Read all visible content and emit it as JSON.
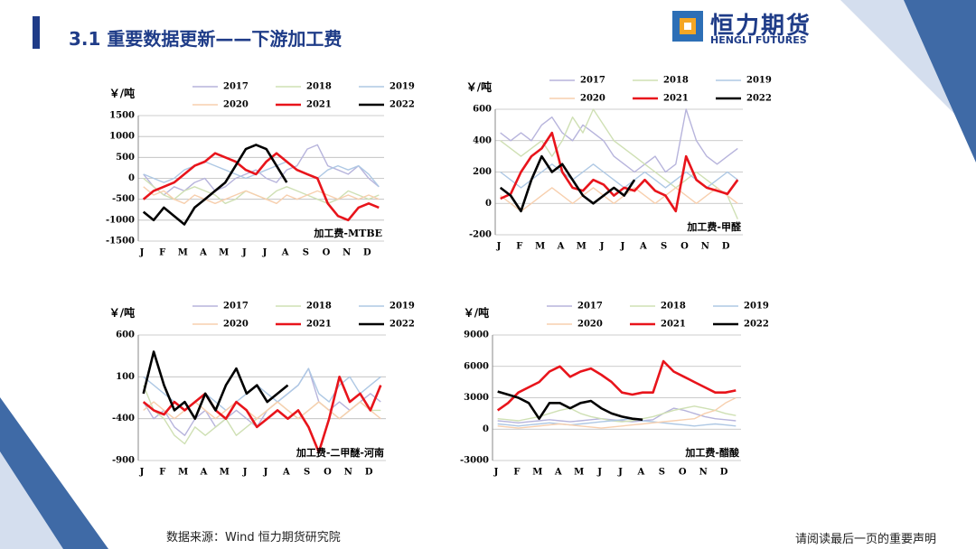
{
  "header": {
    "title": "3.1 重要数据更新——下游加工费",
    "logo": "恒力期货",
    "logo_en": "HENGLI FUTURES"
  },
  "footer": {
    "source": "数据来源：Wind 恒力期货研究院",
    "notice": "请阅读最后一页的重要声明"
  },
  "chart_data": [
    {
      "type": "line",
      "title": "加工费-MTBE",
      "y_label": "￥/吨",
      "categories": [
        "J",
        null,
        "F",
        null,
        "M",
        null,
        "A",
        null,
        "M",
        null,
        "J",
        null,
        "J",
        null,
        "A",
        null,
        "S",
        null,
        "O",
        null,
        "N",
        null,
        "D",
        null
      ],
      "ylim": [
        -1500,
        1500
      ],
      "yticks": [
        -1500,
        -1000,
        -500,
        0,
        500,
        1000,
        1500
      ],
      "grid": true,
      "series": [
        {
          "name": "2017",
          "color": "#b7b4dc",
          "values": [
            100,
            -200,
            -400,
            -200,
            -300,
            -100,
            0,
            -300,
            -200,
            0,
            100,
            200,
            0,
            -100,
            200,
            300,
            700,
            800,
            300,
            200,
            100,
            300,
            0,
            -200
          ]
        },
        {
          "name": "2018",
          "color": "#cfe0b4",
          "values": [
            0,
            -200,
            -400,
            -500,
            -300,
            -200,
            -300,
            -400,
            -600,
            -500,
            -300,
            -400,
            -500,
            -300,
            -200,
            -300,
            -400,
            -500,
            -600,
            -500,
            -300,
            -400,
            -500,
            -400
          ]
        },
        {
          "name": "2019",
          "color": "#aec8e4",
          "values": [
            100,
            0,
            -100,
            0,
            200,
            300,
            400,
            300,
            200,
            100,
            0,
            100,
            200,
            300,
            400,
            200,
            100,
            0,
            200,
            300,
            200,
            300,
            100,
            -200
          ]
        },
        {
          "name": "2020",
          "color": "#f7cfae",
          "values": [
            -200,
            -400,
            -300,
            -500,
            -600,
            -400,
            -500,
            -600,
            -500,
            -400,
            -300,
            -400,
            -500,
            -600,
            -400,
            -500,
            -400,
            -300,
            -400,
            -500,
            -400,
            -500,
            -400,
            -500
          ]
        },
        {
          "name": "2021",
          "color": "#e8141b",
          "values": [
            -500,
            -300,
            -200,
            -100,
            100,
            300,
            400,
            600,
            500,
            400,
            200,
            100,
            400,
            600,
            400,
            200,
            100,
            0,
            -600,
            -900,
            -1000,
            -700,
            -600,
            -700
          ]
        },
        {
          "name": "2022",
          "color": "#000000",
          "values": [
            -800,
            -1000,
            -700,
            -900,
            -1100,
            -700,
            -500,
            -300,
            -100,
            300,
            700,
            800,
            700,
            300,
            -100,
            null,
            null,
            null,
            null,
            null,
            null,
            null,
            null,
            null
          ]
        }
      ]
    },
    {
      "type": "line",
      "title": "加工费-甲醛",
      "y_label": "￥/吨",
      "categories": [
        "J",
        null,
        "F",
        null,
        "M",
        null,
        "A",
        null,
        "M",
        null,
        "J",
        null,
        "J",
        null,
        "A",
        null,
        "S",
        null,
        "O",
        null,
        "N",
        null,
        "D",
        null
      ],
      "ylim": [
        -200,
        600
      ],
      "yticks": [
        -200,
        0,
        200,
        400,
        600
      ],
      "grid": true,
      "series": [
        {
          "name": "2017",
          "color": "#b7b4dc",
          "values": [
            450,
            400,
            450,
            400,
            500,
            550,
            450,
            400,
            500,
            450,
            400,
            300,
            250,
            200,
            250,
            300,
            200,
            250,
            600,
            400,
            300,
            250,
            300,
            350
          ]
        },
        {
          "name": "2018",
          "color": "#cfe0b4",
          "values": [
            400,
            350,
            300,
            350,
            400,
            300,
            400,
            550,
            450,
            600,
            500,
            400,
            350,
            300,
            250,
            200,
            150,
            100,
            150,
            200,
            150,
            100,
            50,
            -100
          ]
        },
        {
          "name": "2019",
          "color": "#aec8e4",
          "values": [
            200,
            150,
            100,
            150,
            200,
            250,
            200,
            150,
            200,
            250,
            200,
            150,
            100,
            150,
            200,
            150,
            100,
            150,
            200,
            150,
            100,
            150,
            200,
            150
          ]
        },
        {
          "name": "2020",
          "color": "#f7cfae",
          "values": [
            50,
            0,
            -50,
            0,
            50,
            100,
            50,
            0,
            50,
            100,
            50,
            0,
            50,
            100,
            50,
            0,
            50,
            100,
            50,
            0,
            50,
            100,
            50,
            0
          ]
        },
        {
          "name": "2021",
          "color": "#e8141b",
          "values": [
            30,
            60,
            200,
            300,
            350,
            450,
            200,
            100,
            80,
            150,
            120,
            50,
            100,
            80,
            150,
            80,
            50,
            -50,
            300,
            150,
            100,
            80,
            60,
            150
          ]
        },
        {
          "name": "2022",
          "color": "#000000",
          "values": [
            100,
            50,
            -50,
            150,
            300,
            200,
            250,
            150,
            50,
            0,
            50,
            100,
            50,
            150,
            null,
            null,
            null,
            null,
            null,
            null,
            null,
            null,
            null,
            null
          ]
        }
      ]
    },
    {
      "type": "line",
      "title": "加工费-二甲醚-河南",
      "y_label": "￥/吨",
      "categories": [
        "J",
        null,
        "F",
        null,
        "M",
        null,
        "A",
        null,
        "M",
        null,
        "J",
        null,
        "J",
        null,
        "A",
        null,
        "S",
        null,
        "O",
        null,
        "N",
        null,
        "D",
        null
      ],
      "ylim": [
        -900,
        600
      ],
      "yticks": [
        -900,
        -400,
        100,
        600
      ],
      "grid": true,
      "series": [
        {
          "name": "2017",
          "color": "#b7b4dc",
          "values": [
            -200,
            -400,
            -300,
            -500,
            -600,
            -400,
            -300,
            -500,
            -400,
            -300,
            -400,
            -500,
            -300,
            -200,
            -100,
            0,
            200,
            -200,
            -300,
            -200,
            -300,
            -200,
            -100,
            -200
          ]
        },
        {
          "name": "2018",
          "color": "#cfe0b4",
          "values": [
            0,
            -300,
            -400,
            -600,
            -700,
            -500,
            -600,
            -500,
            -400,
            -600,
            -500,
            -400,
            -300,
            -200,
            -300,
            -400,
            -300,
            -200,
            -300,
            -400,
            -300,
            -200,
            -300,
            -300
          ]
        },
        {
          "name": "2019",
          "color": "#aec8e4",
          "values": [
            100,
            0,
            -100,
            -200,
            -300,
            -200,
            -100,
            -200,
            -300,
            -200,
            -100,
            0,
            -100,
            -200,
            -100,
            0,
            200,
            -100,
            -200,
            0,
            100,
            -100,
            0,
            100
          ]
        },
        {
          "name": "2020",
          "color": "#f7cfae",
          "values": [
            -300,
            -200,
            -300,
            -400,
            -300,
            -200,
            -300,
            -400,
            -300,
            -200,
            -300,
            -400,
            -300,
            -200,
            -300,
            -400,
            -300,
            -200,
            -300,
            -400,
            -300,
            -200,
            -300,
            -400
          ]
        },
        {
          "name": "2021",
          "color": "#e8141b",
          "values": [
            -200,
            -300,
            -350,
            -200,
            -300,
            -200,
            -100,
            -300,
            -400,
            -200,
            -300,
            -500,
            -400,
            -300,
            -400,
            -300,
            -500,
            -800,
            -400,
            100,
            -200,
            -100,
            -300,
            0
          ]
        },
        {
          "name": "2022",
          "color": "#000000",
          "values": [
            -100,
            400,
            0,
            -300,
            -200,
            -400,
            -100,
            -300,
            0,
            200,
            -100,
            0,
            -200,
            -100,
            0,
            null,
            null,
            null,
            null,
            null,
            null,
            null,
            null,
            null
          ]
        }
      ]
    },
    {
      "type": "line",
      "title": "加工费-醋酸",
      "y_label": "￥/吨",
      "categories": [
        "J",
        null,
        "F",
        null,
        "M",
        null,
        "A",
        null,
        "M",
        null,
        "J",
        null,
        "J",
        null,
        "A",
        null,
        "S",
        null,
        "O",
        null,
        "N",
        null,
        "D",
        null
      ],
      "ylim": [
        -3000,
        9000
      ],
      "yticks": [
        -3000,
        0,
        3000,
        6000,
        9000
      ],
      "grid": true,
      "series": [
        {
          "name": "2017",
          "color": "#b7b4dc",
          "values": [
            800,
            700,
            600,
            700,
            800,
            900,
            800,
            700,
            800,
            900,
            1000,
            900,
            800,
            700,
            800,
            900,
            1500,
            2000,
            1800,
            1500,
            1200,
            1000,
            900,
            800
          ]
        },
        {
          "name": "2018",
          "color": "#cfe0b4",
          "values": [
            1000,
            900,
            800,
            1000,
            1200,
            1500,
            1800,
            2000,
            1500,
            1200,
            1000,
            800,
            700,
            800,
            1000,
            1200,
            1500,
            1800,
            2000,
            2200,
            2000,
            1800,
            1500,
            1300
          ]
        },
        {
          "name": "2019",
          "color": "#aec8e4",
          "values": [
            500,
            400,
            300,
            400,
            500,
            600,
            500,
            400,
            500,
            600,
            700,
            800,
            900,
            1000,
            800,
            700,
            600,
            500,
            400,
            300,
            400,
            500,
            400,
            300
          ]
        },
        {
          "name": "2020",
          "color": "#f7cfae",
          "values": [
            300,
            200,
            100,
            200,
            300,
            400,
            500,
            400,
            300,
            200,
            100,
            200,
            300,
            400,
            500,
            600,
            700,
            800,
            900,
            1000,
            1500,
            1800,
            2500,
            3000
          ]
        },
        {
          "name": "2021",
          "color": "#e8141b",
          "values": [
            1800,
            2500,
            3500,
            4000,
            4500,
            5500,
            6000,
            5000,
            5500,
            5800,
            5200,
            4500,
            3500,
            3300,
            3500,
            3500,
            6500,
            5500,
            5000,
            4500,
            4000,
            3500,
            3500,
            3700
          ]
        },
        {
          "name": "2022",
          "color": "#000000",
          "values": [
            3600,
            3300,
            3000,
            2500,
            1000,
            2500,
            2500,
            2000,
            2500,
            2700,
            2000,
            1500,
            1200,
            1000,
            900,
            null,
            null,
            null,
            null,
            null,
            null,
            null,
            null,
            null
          ]
        }
      ]
    }
  ]
}
